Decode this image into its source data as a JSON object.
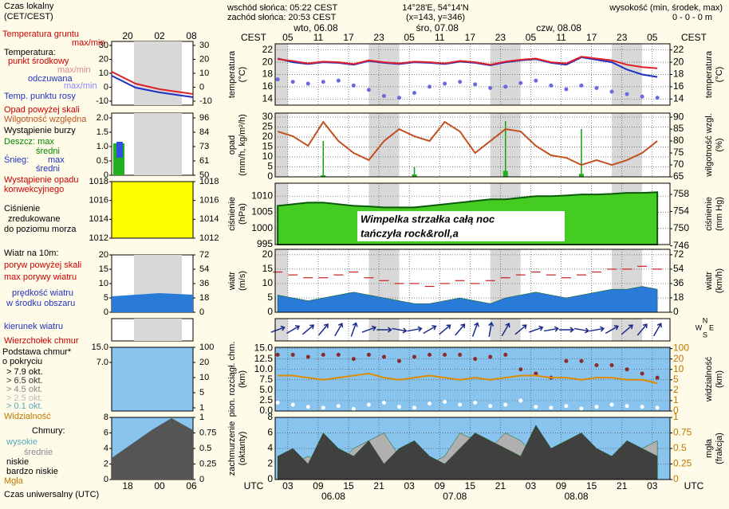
{
  "header": {
    "sunrise": "wschód słońca: 05:22 CEST",
    "sunset": "zachód słońca: 20:53 CEST",
    "coords": "14°28'E, 54°14'N",
    "grid_point": "(x=143, y=346)",
    "height_title": "wysokość (min, środek, max)",
    "height": "0 - 0 - 0 m"
  },
  "annotation": [
    "Wimpelka strzałka całą noc",
    "tańczyła rock&roll,a"
  ],
  "timeline": {
    "xlim": [
      0.5,
      78.5
    ],
    "cest_label": "CEST",
    "utc_label": "UTC",
    "cest_ticks": [
      {
        "value": 3,
        "label": "05"
      },
      {
        "value": 9,
        "label": "11"
      },
      {
        "value": 15,
        "label": "17"
      },
      {
        "value": 21,
        "label": "23"
      },
      {
        "value": 27,
        "label": "05"
      },
      {
        "value": 33,
        "label": "11"
      },
      {
        "value": 39,
        "label": "17"
      },
      {
        "value": 45,
        "label": "23"
      },
      {
        "value": 51,
        "label": "05"
      },
      {
        "value": 57,
        "label": "11"
      },
      {
        "value": 63,
        "label": "17"
      },
      {
        "value": 69,
        "label": "23"
      },
      {
        "value": 75,
        "label": "05"
      }
    ],
    "utc_ticks": [
      {
        "value": 3,
        "label": "03"
      },
      {
        "value": 9,
        "label": "09"
      },
      {
        "value": 15,
        "label": "15"
      },
      {
        "value": 21,
        "label": "21"
      },
      {
        "value": 27,
        "label": "03"
      },
      {
        "value": 33,
        "label": "09"
      },
      {
        "value": 39,
        "label": "15"
      },
      {
        "value": 45,
        "label": "21"
      },
      {
        "value": 51,
        "label": "03"
      },
      {
        "value": 57,
        "label": "09"
      },
      {
        "value": 63,
        "label": "15"
      },
      {
        "value": 69,
        "label": "21"
      },
      {
        "value": 75,
        "label": "03"
      }
    ],
    "days": [
      {
        "value": 12,
        "label": "06.08",
        "header": "wto, 06.08"
      },
      {
        "value": 36,
        "label": "07.08",
        "header": "śro, 07.08"
      },
      {
        "value": 60,
        "label": "08.08",
        "header": "czw, 08.08"
      }
    ],
    "night": [
      [
        0.5,
        3
      ],
      [
        19,
        25
      ],
      [
        43,
        49
      ],
      [
        67,
        73
      ]
    ],
    "x": [
      1,
      4,
      7,
      10,
      13,
      16,
      19,
      22,
      25,
      28,
      31,
      34,
      37,
      40,
      43,
      46,
      49,
      52,
      55,
      58,
      61,
      64,
      67,
      70,
      73,
      76
    ]
  },
  "panels": [
    {
      "label": "temperatura",
      "unit": "(°C)",
      "right_label": "temperatura",
      "right_unit": "(°C)",
      "ylim": [
        13,
        23
      ],
      "yticks": [
        14,
        16,
        18,
        20,
        22
      ],
      "y2lim": [
        13,
        23
      ],
      "y2ticks": [
        14,
        16,
        18,
        20,
        22
      ],
      "series": [
        {
          "type": "dots",
          "color": "#6a6ae0",
          "values": [
            17.2,
            16.8,
            16.5,
            16.8,
            17.0,
            16.2,
            15.5,
            14.5,
            14.2,
            15.0,
            16.0,
            16.5,
            16.8,
            16.4,
            15.8,
            16.0,
            16.6,
            17.0,
            16.2,
            15.6,
            16.2,
            15.8,
            15.2,
            14.8,
            14.4,
            14.2
          ]
        },
        {
          "type": "line",
          "color": "#2030c0",
          "values": [
            20.6,
            20.0,
            19.7,
            20.0,
            19.9,
            19.6,
            20.2,
            19.9,
            19.7,
            20.0,
            19.9,
            19.7,
            20.1,
            19.9,
            19.5,
            20.0,
            20.3,
            20.5,
            19.9,
            19.6,
            20.8,
            20.4,
            20.0,
            18.8,
            18.0,
            17.6
          ]
        },
        {
          "type": "line",
          "color": "#e0202a",
          "values": [
            20.5,
            20.2,
            19.8,
            20.1,
            20.0,
            19.7,
            20.3,
            20.0,
            19.8,
            20.1,
            20.0,
            19.8,
            20.2,
            20.0,
            19.6,
            20.1,
            20.4,
            20.6,
            20.0,
            19.8,
            20.9,
            20.6,
            20.3,
            19.6,
            19.2,
            19.0
          ]
        }
      ]
    },
    {
      "label": "opad",
      "unit": "(mm/h, kg/m²/h)",
      "right_label": "wilgotność wzgl.",
      "right_unit": "(%)",
      "ylim": [
        0,
        32
      ],
      "yticks": [
        0,
        5,
        10,
        15,
        20,
        25,
        30
      ],
      "y2lim": [
        65,
        91.7
      ],
      "y2ticks": [
        65,
        70,
        75,
        80,
        85,
        90
      ],
      "series": [
        {
          "type": "stems",
          "color": "#10a010",
          "values": [
            0,
            0,
            0,
            18,
            0,
            0,
            0,
            0,
            0,
            5,
            0,
            0,
            0,
            0,
            0,
            28,
            0,
            0,
            0,
            0,
            24,
            0,
            0,
            0,
            0,
            0
          ]
        },
        {
          "type": "bars",
          "color": "#20b020",
          "values": [
            0,
            0,
            0,
            0.8,
            0,
            0,
            0,
            0,
            0,
            1.2,
            0,
            0,
            0,
            0,
            0,
            3,
            0,
            0,
            0,
            0,
            1.5,
            0,
            0,
            0,
            0,
            0
          ]
        },
        {
          "type": "line",
          "color": "#c05020",
          "axis": "y2",
          "values": [
            84,
            82,
            78,
            88,
            80,
            75,
            72,
            80,
            85,
            82,
            80,
            88,
            84,
            75,
            80,
            85,
            84,
            78,
            74,
            73,
            70,
            72,
            70,
            72,
            75,
            80
          ]
        }
      ]
    },
    {
      "label": "ciśnienie",
      "unit": "(hPa)",
      "right_label": "ciśnienie",
      "right_unit": "(mm Hg)",
      "ylim": [
        995,
        1014
      ],
      "yticks": [
        995,
        1000,
        1005,
        1010
      ],
      "y2lim": [
        746.3,
        760.6
      ],
      "y2ticks": [
        746,
        750,
        754,
        758
      ],
      "series": [
        {
          "type": "area",
          "color": "#44cc22",
          "values": [
            1007,
            1007.5,
            1008,
            1008,
            1007.5,
            1007,
            1006.8,
            1006.5,
            1006.5,
            1006.5,
            1007,
            1007.5,
            1008,
            1008.5,
            1009,
            1009,
            1009.5,
            1010,
            1010,
            1010.2,
            1010.5,
            1010.5,
            1010.7,
            1011,
            1011,
            1011.2
          ]
        }
      ]
    },
    {
      "label": "wiatr",
      "unit": "(m/s)",
      "right_label": "wiatr",
      "right_unit": "(km/h)",
      "ylim": [
        0,
        21.9
      ],
      "yticks": [
        0,
        5,
        10,
        15,
        20
      ],
      "y2lim": [
        0,
        78.8
      ],
      "y2ticks": [
        0,
        18,
        36,
        54,
        72
      ],
      "series": [
        {
          "type": "area",
          "color": "#2a7ad8",
          "values": [
            6,
            5,
            4,
            5,
            6,
            7,
            6,
            5,
            4,
            3,
            3,
            4,
            5,
            4,
            3,
            5,
            6,
            7,
            6,
            5,
            6,
            7,
            8,
            8,
            9,
            8
          ]
        },
        {
          "type": "dashes",
          "color": "#cc2020",
          "values": [
            14,
            13,
            12,
            12,
            13,
            14,
            12,
            11,
            10,
            10,
            9,
            10,
            11,
            10,
            11,
            12,
            13,
            14,
            13,
            12,
            13,
            14,
            15,
            15,
            16,
            15
          ]
        }
      ]
    },
    {
      "label": "",
      "unit": "",
      "right_label": "",
      "right_unit": "",
      "compass": [
        "N",
        "W",
        "E",
        "S"
      ],
      "series": [
        {
          "type": "arrows",
          "color": "#1a2a8a",
          "values": [
            250,
            240,
            230,
            220,
            210,
            200,
            250,
            270,
            280,
            260,
            240,
            230,
            220,
            200,
            190,
            210,
            230,
            250,
            260,
            270,
            280,
            260,
            240,
            230,
            220,
            210
          ]
        }
      ]
    },
    {
      "label": "pion. rozciągł. chm.",
      "unit": "(km)",
      "right_label": "widzialność",
      "right_unit": "(km)",
      "background": "#88c4ee",
      "ylim": [
        0,
        15.3
      ],
      "yticks": [
        {
          "value": 0,
          "label": "0.0"
        },
        2.5,
        {
          "value": 5,
          "label": "5.0"
        },
        7.5,
        {
          "value": 10,
          "label": "10.0"
        },
        12.5,
        {
          "value": 15,
          "label": "15.0"
        }
      ],
      "y2ticks": [
        0,
        1,
        2,
        5,
        10,
        20,
        100
      ],
      "series": [
        {
          "type": "dots",
          "color": "#8b2a2a",
          "values": [
            13.5,
            13.5,
            13,
            13.5,
            13.5,
            12.5,
            13.5,
            13,
            12,
            13,
            13.5,
            13.5,
            13.5,
            12.5,
            13,
            13.5,
            10,
            9,
            8,
            12,
            12,
            11,
            11,
            10,
            9,
            8
          ]
        },
        {
          "type": "dots",
          "color": "#ffffff",
          "values": [
            2,
            1.5,
            1,
            0.8,
            1.2,
            0.5,
            1.5,
            2,
            1,
            0.8,
            1.8,
            2.2,
            1.5,
            2,
            1.2,
            1.5,
            2.5,
            1,
            0.8,
            1.2,
            0.6,
            1,
            1.5,
            1.2,
            1,
            0.8
          ]
        },
        {
          "type": "line",
          "color": "#e08a00",
          "axis": "y2",
          "values": [
            7,
            7,
            6,
            5,
            6,
            7,
            8,
            6,
            5,
            6,
            7,
            6,
            5,
            6,
            5,
            6,
            7,
            7,
            6,
            6,
            5,
            6,
            6,
            5,
            5,
            4
          ]
        }
      ]
    },
    {
      "label": "zachmurzenie",
      "unit": "(oktanty)",
      "right_label": "mgła",
      "right_unit": "(frakcja)",
      "background": "#88c4ee",
      "ylim": [
        0,
        8
      ],
      "yticks": [
        0,
        2,
        4,
        6,
        8
      ],
      "y2lim": [
        0,
        1
      ],
      "y2ticks": [
        0,
        0.25,
        0.5,
        0.75,
        1
      ],
      "series": [
        {
          "type": "area",
          "color": "#b0b0b0",
          "values": [
            1,
            2,
            3,
            2,
            2,
            4,
            5,
            6,
            3,
            4,
            2,
            3,
            6,
            5,
            4,
            6,
            5,
            3,
            2,
            4,
            3,
            2,
            3,
            2,
            4,
            5
          ]
        },
        {
          "type": "area",
          "color": "#404040",
          "values": [
            3,
            4,
            2,
            6,
            4,
            3,
            5,
            2,
            4,
            5,
            3,
            2,
            4,
            6,
            5,
            4,
            3,
            7,
            4,
            5,
            6,
            4,
            3,
            5,
            4,
            3
          ]
        }
      ]
    }
  ],
  "legend": [
    "Czas lokalny",
    "(CET/CEST)",
    "Temperatura gruntu",
    "max/min",
    "Temperatura:",
    "punkt środkowy",
    "max/min",
    "odczuwana",
    "max/min",
    "Temp. punktu rosy",
    "Opad powyżej skali",
    "Wilgotność względna",
    "Wystąpienie burzy",
    "Deszcz: max",
    "średni",
    "Śnieg:",
    "max",
    "średni",
    "Wystąpienie opadu",
    "konwekcyjnego",
    "Ciśnienie",
    "zredukowane",
    "do poziomu morza",
    "Wiatr na 10m:",
    "poryw powyżej skali",
    "max porywy wiatru",
    "prędkość wiatru",
    "w środku obszaru",
    "kierunek wiatru",
    "Wierzchołek chmur",
    "Podstawa chmur*",
    "o pokryciu",
    "> 7.9 okt.",
    "> 6.5 okt.",
    "> 4.5 okt.",
    "> 2.5 okt.",
    "> 0.1 okt.",
    "Widzialność",
    "Chmury:",
    "wysokie",
    "średnie",
    "niskie",
    "bardzo niskie",
    "Mgła",
    "Czas uniwersalny (UTC)"
  ],
  "mini": {
    "top_ticks": [
      "20",
      "02",
      "08"
    ],
    "bottom_ticks": [
      "18",
      "00",
      "06"
    ],
    "panels": [
      {
        "yticks": [
          30,
          20,
          10,
          0,
          -10
        ],
        "y2ticks": [
          30,
          20,
          10,
          0,
          -10
        ]
      },
      {
        "yticks": [
          {
            "value": 2,
            "label": "2.0"
          },
          1.5,
          {
            "value": 1,
            "label": "1.0"
          },
          0.5,
          0
        ],
        "y2ticks": [
          96,
          84,
          73,
          61,
          50
        ]
      },
      {
        "yticks": [
          1018,
          1016,
          1014,
          1012
        ],
        "y2ticks": [
          1018,
          1016,
          1014,
          1012
        ]
      },
      {
        "yticks": [
          20,
          15,
          10,
          5,
          0
        ],
        "y2ticks": [
          72,
          54,
          36,
          18,
          0
        ]
      },
      {
        "yticks": [],
        "y2ticks": []
      },
      {
        "yticks": [
          {
            "value": 15,
            "label": "15.0"
          },
          {
            "value": 7,
            "label": "7.0"
          }
        ],
        "y2ticks": [
          100,
          20,
          10,
          5,
          1
        ]
      },
      {
        "yticks": [
          8,
          6,
          4,
          2,
          0
        ],
        "y2ticks": [
          1,
          0.75,
          0.5,
          0.25,
          0
        ]
      }
    ]
  }
}
